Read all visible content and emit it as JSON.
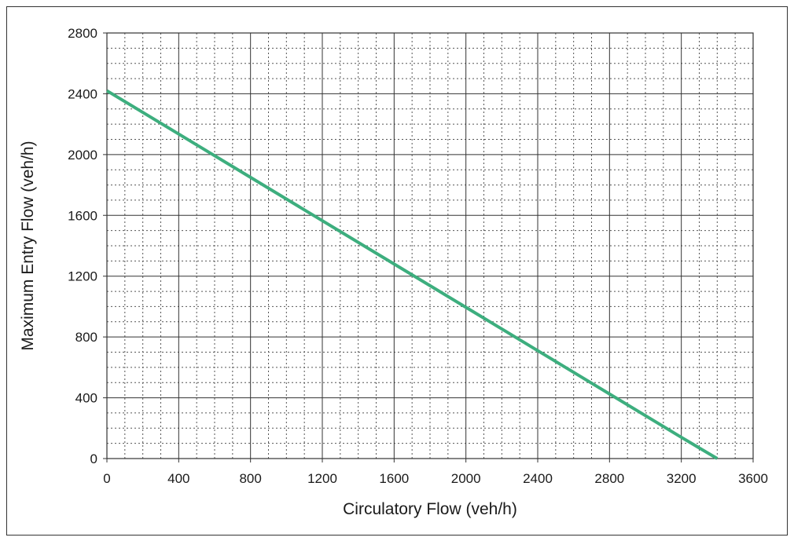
{
  "chart_data": {
    "type": "line",
    "xlabel": "Circulatory Flow (veh/h)",
    "ylabel": "Maximum Entry Flow (veh/h)",
    "xlim": [
      0,
      3600
    ],
    "ylim": [
      0,
      2800
    ],
    "x_ticks": [
      0,
      400,
      800,
      1200,
      1600,
      2000,
      2400,
      2800,
      3200,
      3600
    ],
    "y_ticks": [
      0,
      400,
      800,
      1200,
      1600,
      2000,
      2400,
      2800
    ],
    "x_minor_step": 100,
    "y_minor_step": 100,
    "grid": "major solid, minor dotted",
    "legend": "none",
    "series": [
      {
        "color": "#3dae7e",
        "x": [
          0,
          400,
          800,
          1200,
          1600,
          2000,
          2400,
          2800,
          3200,
          3400
        ],
        "y": [
          2420,
          2135,
          1850,
          1565,
          1280,
          995,
          710,
          425,
          140,
          0
        ]
      }
    ]
  }
}
